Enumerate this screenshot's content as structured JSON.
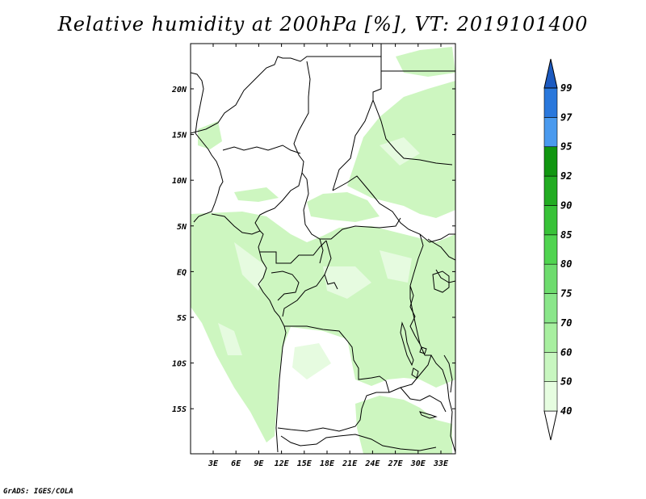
{
  "title": "Relative humidity at 200hPa [%], VT: 2019101400",
  "footer": "GrADS: IGES/COLA",
  "map": {
    "lat_labels": [
      "20N",
      "15N",
      "10N",
      "5N",
      "EQ",
      "5S",
      "10S",
      "15S"
    ],
    "lon_labels": [
      "3E",
      "6E",
      "9E",
      "12E",
      "15E",
      "18E",
      "21E",
      "24E",
      "27E",
      "30E",
      "33E"
    ],
    "land_color": "#ffffff",
    "humid_color": "#cdf6c0",
    "humid_light_color": "#e6fbe0",
    "border_color": "#000000"
  },
  "colorbar": {
    "levels": [
      "40",
      "50",
      "60",
      "70",
      "75",
      "80",
      "85",
      "90",
      "92",
      "95",
      "97",
      "99"
    ],
    "colors": [
      "#ffffff",
      "#e6fde0",
      "#c8f6c0",
      "#a8efa0",
      "#8ae68a",
      "#6edc6e",
      "#50d450",
      "#38c238",
      "#22ac22",
      "#109610",
      "#4a9aee",
      "#2a78dc",
      "#1c5ac0"
    ]
  }
}
